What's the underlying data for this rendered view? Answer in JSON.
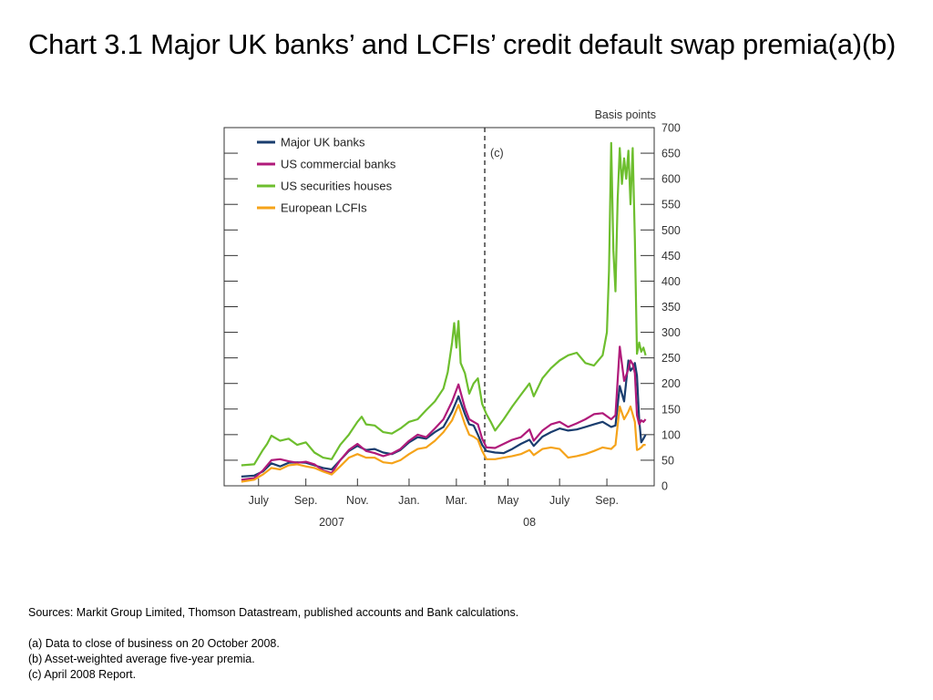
{
  "title": "Chart 3.1  Major UK banks’ and LCFIs’ credit default swap premia(a)(b)",
  "chart_data": {
    "type": "line",
    "unit_label": "Basis points",
    "ylim": [
      0,
      700
    ],
    "y_ticks": [
      0,
      50,
      100,
      150,
      200,
      250,
      300,
      350,
      400,
      450,
      500,
      550,
      600,
      650,
      700
    ],
    "x_ticks": [
      {
        "label": "July",
        "t": 0.08
      },
      {
        "label": "Sep.",
        "t": 0.19
      },
      {
        "label": "Nov.",
        "t": 0.31
      },
      {
        "label": "Jan.",
        "t": 0.43
      },
      {
        "label": "Mar.",
        "t": 0.54
      },
      {
        "label": "May",
        "t": 0.66
      },
      {
        "label": "July",
        "t": 0.78
      },
      {
        "label": "Sep.",
        "t": 0.89
      }
    ],
    "year_labels": [
      {
        "label": "2007",
        "t": 0.25
      },
      {
        "label": "08",
        "t": 0.71
      }
    ],
    "vline": {
      "label": "(c)",
      "t": 0.606
    },
    "grid": false,
    "legend_position": "top-left",
    "series": [
      {
        "name": "Major UK banks",
        "color": "#1a3d6e",
        "points": [
          [
            0.04,
            18
          ],
          [
            0.07,
            20
          ],
          [
            0.09,
            28
          ],
          [
            0.11,
            44
          ],
          [
            0.13,
            38
          ],
          [
            0.15,
            45
          ],
          [
            0.17,
            46
          ],
          [
            0.19,
            45
          ],
          [
            0.21,
            40
          ],
          [
            0.23,
            35
          ],
          [
            0.25,
            32
          ],
          [
            0.27,
            50
          ],
          [
            0.29,
            68
          ],
          [
            0.31,
            78
          ],
          [
            0.33,
            70
          ],
          [
            0.35,
            72
          ],
          [
            0.37,
            65
          ],
          [
            0.39,
            62
          ],
          [
            0.41,
            70
          ],
          [
            0.43,
            85
          ],
          [
            0.45,
            95
          ],
          [
            0.47,
            92
          ],
          [
            0.49,
            105
          ],
          [
            0.51,
            115
          ],
          [
            0.53,
            145
          ],
          [
            0.545,
            175
          ],
          [
            0.56,
            140
          ],
          [
            0.57,
            120
          ],
          [
            0.58,
            118
          ],
          [
            0.59,
            100
          ],
          [
            0.6,
            80
          ],
          [
            0.61,
            68
          ],
          [
            0.63,
            65
          ],
          [
            0.65,
            64
          ],
          [
            0.67,
            72
          ],
          [
            0.69,
            82
          ],
          [
            0.71,
            90
          ],
          [
            0.72,
            78
          ],
          [
            0.74,
            96
          ],
          [
            0.76,
            105
          ],
          [
            0.78,
            112
          ],
          [
            0.8,
            108
          ],
          [
            0.82,
            110
          ],
          [
            0.84,
            115
          ],
          [
            0.86,
            120
          ],
          [
            0.88,
            125
          ],
          [
            0.9,
            115
          ],
          [
            0.91,
            118
          ],
          [
            0.92,
            195
          ],
          [
            0.93,
            165
          ],
          [
            0.94,
            245
          ],
          [
            0.945,
            225
          ],
          [
            0.95,
            230
          ],
          [
            0.955,
            240
          ],
          [
            0.96,
            215
          ],
          [
            0.965,
            130
          ],
          [
            0.97,
            85
          ],
          [
            0.975,
            92
          ],
          [
            0.98,
            100
          ]
        ]
      },
      {
        "name": "US commercial banks",
        "color": "#b01a7a",
        "points": [
          [
            0.04,
            12
          ],
          [
            0.07,
            15
          ],
          [
            0.09,
            30
          ],
          [
            0.11,
            50
          ],
          [
            0.13,
            52
          ],
          [
            0.15,
            48
          ],
          [
            0.17,
            45
          ],
          [
            0.19,
            47
          ],
          [
            0.21,
            42
          ],
          [
            0.23,
            30
          ],
          [
            0.25,
            25
          ],
          [
            0.27,
            50
          ],
          [
            0.29,
            70
          ],
          [
            0.31,
            82
          ],
          [
            0.33,
            68
          ],
          [
            0.35,
            64
          ],
          [
            0.37,
            58
          ],
          [
            0.39,
            63
          ],
          [
            0.41,
            72
          ],
          [
            0.43,
            88
          ],
          [
            0.45,
            100
          ],
          [
            0.47,
            95
          ],
          [
            0.49,
            112
          ],
          [
            0.51,
            130
          ],
          [
            0.53,
            165
          ],
          [
            0.545,
            198
          ],
          [
            0.56,
            152
          ],
          [
            0.57,
            130
          ],
          [
            0.58,
            125
          ],
          [
            0.59,
            120
          ],
          [
            0.6,
            92
          ],
          [
            0.61,
            75
          ],
          [
            0.63,
            74
          ],
          [
            0.65,
            82
          ],
          [
            0.67,
            90
          ],
          [
            0.69,
            95
          ],
          [
            0.71,
            110
          ],
          [
            0.72,
            88
          ],
          [
            0.74,
            108
          ],
          [
            0.76,
            120
          ],
          [
            0.78,
            125
          ],
          [
            0.8,
            115
          ],
          [
            0.82,
            122
          ],
          [
            0.84,
            130
          ],
          [
            0.86,
            140
          ],
          [
            0.88,
            142
          ],
          [
            0.9,
            130
          ],
          [
            0.91,
            138
          ],
          [
            0.92,
            272
          ],
          [
            0.93,
            205
          ],
          [
            0.94,
            228
          ],
          [
            0.945,
            245
          ],
          [
            0.95,
            238
          ],
          [
            0.955,
            220
          ],
          [
            0.96,
            138
          ],
          [
            0.965,
            120
          ],
          [
            0.97,
            128
          ],
          [
            0.975,
            125
          ],
          [
            0.98,
            130
          ]
        ]
      },
      {
        "name": "US securities houses",
        "color": "#6dbe2e",
        "points": [
          [
            0.04,
            40
          ],
          [
            0.07,
            42
          ],
          [
            0.09,
            70
          ],
          [
            0.1,
            82
          ],
          [
            0.11,
            98
          ],
          [
            0.13,
            88
          ],
          [
            0.15,
            92
          ],
          [
            0.17,
            80
          ],
          [
            0.19,
            85
          ],
          [
            0.21,
            65
          ],
          [
            0.23,
            55
          ],
          [
            0.25,
            52
          ],
          [
            0.27,
            80
          ],
          [
            0.29,
            100
          ],
          [
            0.31,
            125
          ],
          [
            0.32,
            135
          ],
          [
            0.33,
            120
          ],
          [
            0.35,
            118
          ],
          [
            0.37,
            105
          ],
          [
            0.39,
            102
          ],
          [
            0.41,
            112
          ],
          [
            0.43,
            125
          ],
          [
            0.45,
            130
          ],
          [
            0.47,
            148
          ],
          [
            0.49,
            165
          ],
          [
            0.51,
            190
          ],
          [
            0.52,
            222
          ],
          [
            0.53,
            280
          ],
          [
            0.535,
            318
          ],
          [
            0.54,
            270
          ],
          [
            0.545,
            322
          ],
          [
            0.55,
            240
          ],
          [
            0.56,
            220
          ],
          [
            0.57,
            180
          ],
          [
            0.58,
            200
          ],
          [
            0.59,
            210
          ],
          [
            0.6,
            160
          ],
          [
            0.61,
            140
          ],
          [
            0.62,
            125
          ],
          [
            0.63,
            108
          ],
          [
            0.65,
            130
          ],
          [
            0.67,
            155
          ],
          [
            0.69,
            178
          ],
          [
            0.71,
            200
          ],
          [
            0.72,
            175
          ],
          [
            0.74,
            210
          ],
          [
            0.76,
            230
          ],
          [
            0.78,
            245
          ],
          [
            0.8,
            255
          ],
          [
            0.82,
            260
          ],
          [
            0.84,
            240
          ],
          [
            0.86,
            235
          ],
          [
            0.88,
            255
          ],
          [
            0.89,
            300
          ],
          [
            0.895,
            420
          ],
          [
            0.9,
            670
          ],
          [
            0.905,
            460
          ],
          [
            0.91,
            380
          ],
          [
            0.915,
            560
          ],
          [
            0.92,
            660
          ],
          [
            0.925,
            590
          ],
          [
            0.93,
            640
          ],
          [
            0.935,
            600
          ],
          [
            0.94,
            655
          ],
          [
            0.945,
            550
          ],
          [
            0.95,
            660
          ],
          [
            0.955,
            480
          ],
          [
            0.96,
            258
          ],
          [
            0.965,
            280
          ],
          [
            0.97,
            262
          ],
          [
            0.975,
            270
          ],
          [
            0.98,
            255
          ]
        ]
      },
      {
        "name": "European LCFIs",
        "color": "#f5a31a",
        "points": [
          [
            0.04,
            8
          ],
          [
            0.07,
            12
          ],
          [
            0.09,
            22
          ],
          [
            0.11,
            35
          ],
          [
            0.13,
            32
          ],
          [
            0.15,
            40
          ],
          [
            0.17,
            42
          ],
          [
            0.19,
            38
          ],
          [
            0.21,
            35
          ],
          [
            0.23,
            28
          ],
          [
            0.25,
            22
          ],
          [
            0.27,
            38
          ],
          [
            0.29,
            55
          ],
          [
            0.31,
            62
          ],
          [
            0.33,
            55
          ],
          [
            0.35,
            55
          ],
          [
            0.37,
            46
          ],
          [
            0.39,
            44
          ],
          [
            0.41,
            50
          ],
          [
            0.43,
            62
          ],
          [
            0.45,
            72
          ],
          [
            0.47,
            75
          ],
          [
            0.49,
            88
          ],
          [
            0.51,
            105
          ],
          [
            0.53,
            128
          ],
          [
            0.545,
            158
          ],
          [
            0.56,
            120
          ],
          [
            0.57,
            100
          ],
          [
            0.58,
            96
          ],
          [
            0.59,
            90
          ],
          [
            0.6,
            68
          ],
          [
            0.61,
            52
          ],
          [
            0.63,
            52
          ],
          [
            0.65,
            55
          ],
          [
            0.67,
            58
          ],
          [
            0.69,
            62
          ],
          [
            0.71,
            70
          ],
          [
            0.72,
            60
          ],
          [
            0.74,
            72
          ],
          [
            0.76,
            75
          ],
          [
            0.78,
            72
          ],
          [
            0.8,
            55
          ],
          [
            0.82,
            58
          ],
          [
            0.84,
            62
          ],
          [
            0.86,
            68
          ],
          [
            0.88,
            75
          ],
          [
            0.9,
            72
          ],
          [
            0.91,
            80
          ],
          [
            0.92,
            155
          ],
          [
            0.93,
            130
          ],
          [
            0.94,
            145
          ],
          [
            0.945,
            155
          ],
          [
            0.95,
            140
          ],
          [
            0.955,
            125
          ],
          [
            0.96,
            70
          ],
          [
            0.965,
            72
          ],
          [
            0.97,
            75
          ],
          [
            0.975,
            80
          ],
          [
            0.98,
            80
          ]
        ]
      }
    ]
  },
  "notes": {
    "sources": "Sources:  Markit Group Limited, Thomson Datastream, published accounts and Bank calculations.",
    "a": "(a)  Data to close of business on 20 October 2008.",
    "b": "(b)  Asset-weighted average five-year premia.",
    "c": "(c)  April 2008 Report."
  }
}
